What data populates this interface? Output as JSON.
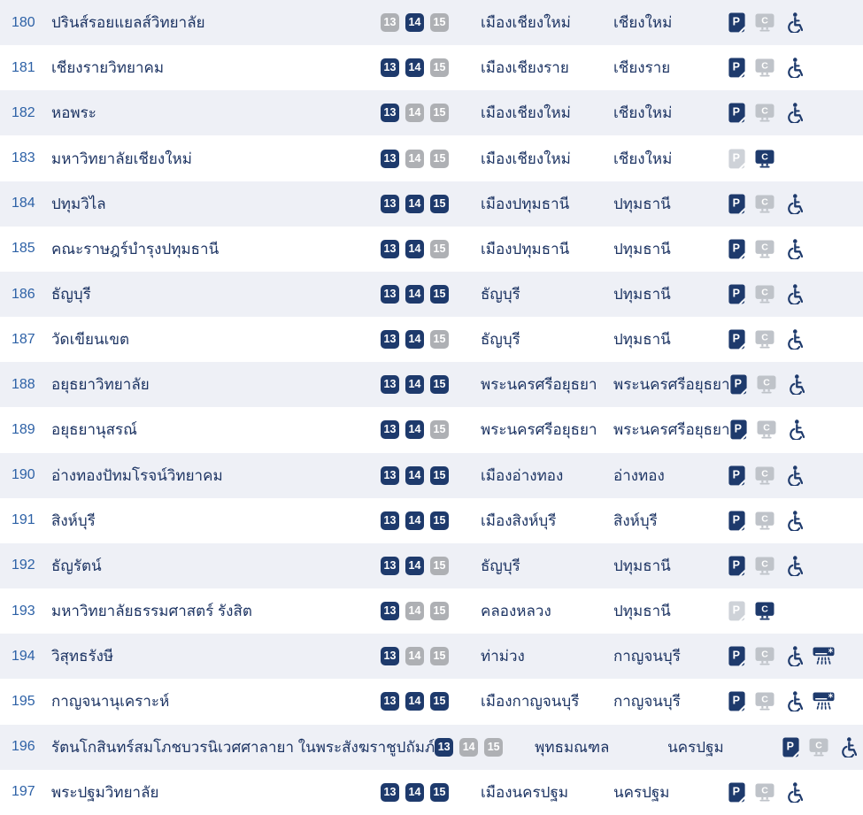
{
  "colors": {
    "navy": "#1e3a6c",
    "number_blue": "#2d61a6",
    "text_navy": "#1d3463",
    "badge_gray": "#aeb0b4",
    "icon_gray": "#bfc3c9",
    "icon_gray_light": "#ced2d8",
    "row_alt_bg": "#eef0f6",
    "row_bg": "#ffffff"
  },
  "icons": {
    "parking": "parking-card-icon",
    "computer": "computer-monitor-icon",
    "wheelchair": "wheelchair-icon",
    "aircon": "air-conditioner-icon"
  },
  "table": {
    "rows": [
      {
        "no": "180",
        "name": "ปรินส์รอยแยลส์วิทยาลัย",
        "days": [
          {
            "label": "13",
            "active": false
          },
          {
            "label": "14",
            "active": true
          },
          {
            "label": "15",
            "active": false
          }
        ],
        "district": "เมืองเชียงใหม่",
        "province": "เชียงใหม่",
        "amenities": {
          "parking": "active",
          "computer": "inactive",
          "wheelchair": true,
          "aircon": false
        }
      },
      {
        "no": "181",
        "name": "เชียงรายวิทยาคม",
        "days": [
          {
            "label": "13",
            "active": true
          },
          {
            "label": "14",
            "active": true
          },
          {
            "label": "15",
            "active": false
          }
        ],
        "district": "เมืองเชียงราย",
        "province": "เชียงราย",
        "amenities": {
          "parking": "active",
          "computer": "inactive",
          "wheelchair": true,
          "aircon": false
        }
      },
      {
        "no": "182",
        "name": "หอพระ",
        "days": [
          {
            "label": "13",
            "active": true
          },
          {
            "label": "14",
            "active": false
          },
          {
            "label": "15",
            "active": false
          }
        ],
        "district": "เมืองเชียงใหม่",
        "province": "เชียงใหม่",
        "amenities": {
          "parking": "active",
          "computer": "inactive",
          "wheelchair": true,
          "aircon": false
        }
      },
      {
        "no": "183",
        "name": "มหาวิทยาลัยเชียงใหม่",
        "days": [
          {
            "label": "13",
            "active": true
          },
          {
            "label": "14",
            "active": false
          },
          {
            "label": "15",
            "active": false
          }
        ],
        "district": "เมืองเชียงใหม่",
        "province": "เชียงใหม่",
        "amenities": {
          "parking": "inactive",
          "computer": "active",
          "wheelchair": false,
          "aircon": false
        }
      },
      {
        "no": "184",
        "name": "ปทุมวิไล",
        "days": [
          {
            "label": "13",
            "active": true
          },
          {
            "label": "14",
            "active": true
          },
          {
            "label": "15",
            "active": true
          }
        ],
        "district": "เมืองปทุมธานี",
        "province": "ปทุมธานี",
        "amenities": {
          "parking": "active",
          "computer": "inactive",
          "wheelchair": true,
          "aircon": false
        }
      },
      {
        "no": "185",
        "name": "คณะราษฎร์บำรุงปทุมธานี",
        "days": [
          {
            "label": "13",
            "active": true
          },
          {
            "label": "14",
            "active": true
          },
          {
            "label": "15",
            "active": false
          }
        ],
        "district": "เมืองปทุมธานี",
        "province": "ปทุมธานี",
        "amenities": {
          "parking": "active",
          "computer": "inactive",
          "wheelchair": true,
          "aircon": false
        }
      },
      {
        "no": "186",
        "name": "ธัญบุรี",
        "days": [
          {
            "label": "13",
            "active": true
          },
          {
            "label": "14",
            "active": true
          },
          {
            "label": "15",
            "active": true
          }
        ],
        "district": "ธัญบุรี",
        "province": "ปทุมธานี",
        "amenities": {
          "parking": "active",
          "computer": "inactive",
          "wheelchair": true,
          "aircon": false
        }
      },
      {
        "no": "187",
        "name": "วัดเขียนเขต",
        "days": [
          {
            "label": "13",
            "active": true
          },
          {
            "label": "14",
            "active": true
          },
          {
            "label": "15",
            "active": false
          }
        ],
        "district": "ธัญบุรี",
        "province": "ปทุมธานี",
        "amenities": {
          "parking": "active",
          "computer": "inactive",
          "wheelchair": true,
          "aircon": false
        }
      },
      {
        "no": "188",
        "name": "อยุธยาวิทยาลัย",
        "days": [
          {
            "label": "13",
            "active": true
          },
          {
            "label": "14",
            "active": true
          },
          {
            "label": "15",
            "active": true
          }
        ],
        "district": "พระนครศรีอยุธยา",
        "province": "พระนครศรีอยุธยา",
        "amenities": {
          "parking": "active",
          "computer": "inactive",
          "wheelchair": true,
          "aircon": false
        }
      },
      {
        "no": "189",
        "name": "อยุธยานุสรณ์",
        "days": [
          {
            "label": "13",
            "active": true
          },
          {
            "label": "14",
            "active": true
          },
          {
            "label": "15",
            "active": false
          }
        ],
        "district": "พระนครศรีอยุธยา",
        "province": "พระนครศรีอยุธยา",
        "amenities": {
          "parking": "active",
          "computer": "inactive",
          "wheelchair": true,
          "aircon": false
        }
      },
      {
        "no": "190",
        "name": "อ่างทองปัทมโรจน์วิทยาคม",
        "days": [
          {
            "label": "13",
            "active": true
          },
          {
            "label": "14",
            "active": true
          },
          {
            "label": "15",
            "active": true
          }
        ],
        "district": "เมืองอ่างทอง",
        "province": "อ่างทอง",
        "amenities": {
          "parking": "active",
          "computer": "inactive",
          "wheelchair": true,
          "aircon": false
        }
      },
      {
        "no": "191",
        "name": "สิงห์บุรี",
        "days": [
          {
            "label": "13",
            "active": true
          },
          {
            "label": "14",
            "active": true
          },
          {
            "label": "15",
            "active": true
          }
        ],
        "district": "เมืองสิงห์บุรี",
        "province": "สิงห์บุรี",
        "amenities": {
          "parking": "active",
          "computer": "inactive",
          "wheelchair": true,
          "aircon": false
        }
      },
      {
        "no": "192",
        "name": "ธัญรัตน์",
        "days": [
          {
            "label": "13",
            "active": true
          },
          {
            "label": "14",
            "active": true
          },
          {
            "label": "15",
            "active": false
          }
        ],
        "district": "ธัญบุรี",
        "province": "ปทุมธานี",
        "amenities": {
          "parking": "active",
          "computer": "inactive",
          "wheelchair": true,
          "aircon": false
        }
      },
      {
        "no": "193",
        "name": "มหาวิทยาลัยธรรมศาสตร์ รังสิต",
        "days": [
          {
            "label": "13",
            "active": true
          },
          {
            "label": "14",
            "active": false
          },
          {
            "label": "15",
            "active": false
          }
        ],
        "district": "คลองหลวง",
        "province": "ปทุมธานี",
        "amenities": {
          "parking": "inactive",
          "computer": "active",
          "wheelchair": false,
          "aircon": false
        }
      },
      {
        "no": "194",
        "name": "วิสุทธรังษี",
        "days": [
          {
            "label": "13",
            "active": true
          },
          {
            "label": "14",
            "active": false
          },
          {
            "label": "15",
            "active": false
          }
        ],
        "district": "ท่าม่วง",
        "province": "กาญจนบุรี",
        "amenities": {
          "parking": "active",
          "computer": "inactive",
          "wheelchair": true,
          "aircon": true
        }
      },
      {
        "no": "195",
        "name": "กาญจนานุเคราะห์",
        "days": [
          {
            "label": "13",
            "active": true
          },
          {
            "label": "14",
            "active": true
          },
          {
            "label": "15",
            "active": true
          }
        ],
        "district": "เมืองกาญจนบุรี",
        "province": "กาญจนบุรี",
        "amenities": {
          "parking": "active",
          "computer": "inactive",
          "wheelchair": true,
          "aircon": true
        }
      },
      {
        "no": "196",
        "name": "รัตนโกสินทร์สมโภชบวรนิเวศศาลายา ในพระสังฆราชูปถัมภ์",
        "days": [
          {
            "label": "13",
            "active": true
          },
          {
            "label": "14",
            "active": false
          },
          {
            "label": "15",
            "active": false
          }
        ],
        "district": "พุทธมณฑล",
        "province": "นครปฐม",
        "amenities": {
          "parking": "active",
          "computer": "inactive",
          "wheelchair": true,
          "aircon": false
        }
      },
      {
        "no": "197",
        "name": "พระปฐมวิทยาลัย",
        "days": [
          {
            "label": "13",
            "active": true
          },
          {
            "label": "14",
            "active": true
          },
          {
            "label": "15",
            "active": true
          }
        ],
        "district": "เมืองนครปฐม",
        "province": "นครปฐม",
        "amenities": {
          "parking": "active",
          "computer": "inactive",
          "wheelchair": true,
          "aircon": false
        }
      }
    ]
  }
}
